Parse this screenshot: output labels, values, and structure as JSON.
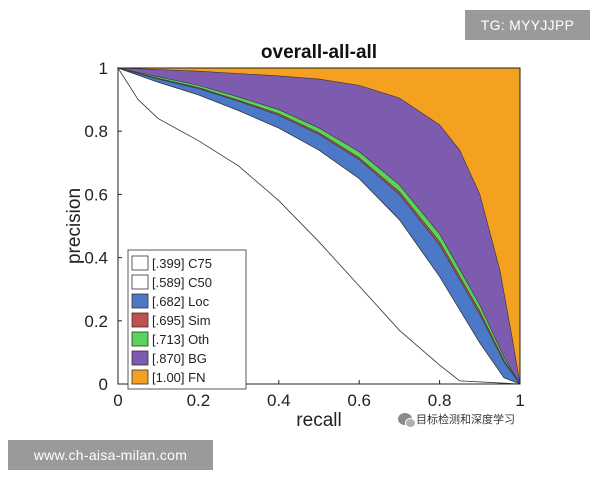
{
  "watermarks": {
    "top": "TG: MYYJJPP",
    "bottom": "www.ch-aisa-milan.com",
    "wechat": "目标检测和深度学习",
    "wechat_icon": "wechat-icon"
  },
  "chart_data": {
    "type": "area",
    "title": "overall-all-all",
    "xlabel": "recall",
    "ylabel": "precision",
    "xlim": [
      0,
      1
    ],
    "ylim": [
      0,
      1
    ],
    "xticks": [
      "0",
      "0.2",
      "0.4",
      "0.6",
      "0.8",
      "1"
    ],
    "yticks": [
      "0",
      "0.2",
      "0.4",
      "0.6",
      "0.8",
      "1"
    ],
    "grid": false,
    "legend_position": "bottom-left",
    "series": [
      {
        "name": "C75",
        "ap": ".399",
        "label": "[.399] C75",
        "color": "#ffffff",
        "points": [
          [
            0,
            1
          ],
          [
            0.05,
            0.9
          ],
          [
            0.1,
            0.84
          ],
          [
            0.2,
            0.77
          ],
          [
            0.3,
            0.69
          ],
          [
            0.4,
            0.58
          ],
          [
            0.5,
            0.45
          ],
          [
            0.6,
            0.31
          ],
          [
            0.7,
            0.17
          ],
          [
            0.8,
            0.06
          ],
          [
            0.85,
            0.01
          ],
          [
            1,
            0
          ]
        ]
      },
      {
        "name": "C50",
        "ap": ".589",
        "label": "[.589] C50",
        "color": "#ffffff",
        "points": [
          [
            0,
            1
          ],
          [
            0.1,
            0.955
          ],
          [
            0.2,
            0.915
          ],
          [
            0.3,
            0.865
          ],
          [
            0.4,
            0.81
          ],
          [
            0.5,
            0.74
          ],
          [
            0.6,
            0.65
          ],
          [
            0.7,
            0.52
          ],
          [
            0.8,
            0.34
          ],
          [
            0.9,
            0.13
          ],
          [
            0.96,
            0.02
          ],
          [
            1,
            0
          ]
        ]
      },
      {
        "name": "Loc",
        "ap": ".682",
        "label": "[.682] Loc",
        "color": "#4c78c8",
        "points": [
          [
            0,
            1
          ],
          [
            0.1,
            0.965
          ],
          [
            0.2,
            0.935
          ],
          [
            0.3,
            0.895
          ],
          [
            0.4,
            0.85
          ],
          [
            0.5,
            0.79
          ],
          [
            0.6,
            0.71
          ],
          [
            0.7,
            0.6
          ],
          [
            0.8,
            0.44
          ],
          [
            0.9,
            0.22
          ],
          [
            0.96,
            0.07
          ],
          [
            1,
            0
          ]
        ]
      },
      {
        "name": "Sim",
        "ap": ".695",
        "label": "[.695] Sim",
        "color": "#c0504d",
        "points": [
          [
            0,
            1
          ],
          [
            0.1,
            0.967
          ],
          [
            0.2,
            0.938
          ],
          [
            0.3,
            0.898
          ],
          [
            0.4,
            0.855
          ],
          [
            0.5,
            0.795
          ],
          [
            0.6,
            0.716
          ],
          [
            0.7,
            0.608
          ],
          [
            0.8,
            0.45
          ],
          [
            0.9,
            0.23
          ],
          [
            0.96,
            0.075
          ],
          [
            1,
            0
          ]
        ]
      },
      {
        "name": "Oth",
        "ap": ".713",
        "label": "[.713] Oth",
        "color": "#5ad35a",
        "points": [
          [
            0,
            1
          ],
          [
            0.1,
            0.972
          ],
          [
            0.2,
            0.945
          ],
          [
            0.3,
            0.908
          ],
          [
            0.4,
            0.868
          ],
          [
            0.5,
            0.81
          ],
          [
            0.6,
            0.735
          ],
          [
            0.7,
            0.63
          ],
          [
            0.8,
            0.475
          ],
          [
            0.9,
            0.25
          ],
          [
            0.96,
            0.085
          ],
          [
            1,
            0
          ]
        ]
      },
      {
        "name": "BG",
        "ap": ".870",
        "label": "[.870] BG",
        "color": "#7d5bae",
        "points": [
          [
            0,
            1
          ],
          [
            0.2,
            0.99
          ],
          [
            0.4,
            0.975
          ],
          [
            0.5,
            0.965
          ],
          [
            0.6,
            0.945
          ],
          [
            0.7,
            0.905
          ],
          [
            0.8,
            0.82
          ],
          [
            0.85,
            0.74
          ],
          [
            0.9,
            0.6
          ],
          [
            0.95,
            0.36
          ],
          [
            0.98,
            0.15
          ],
          [
            1,
            0
          ]
        ]
      },
      {
        "name": "FN",
        "ap": "1.00",
        "label": "[1.00] FN",
        "color": "#f4a020",
        "points": [
          [
            0,
            1
          ],
          [
            1,
            1
          ]
        ]
      }
    ]
  }
}
